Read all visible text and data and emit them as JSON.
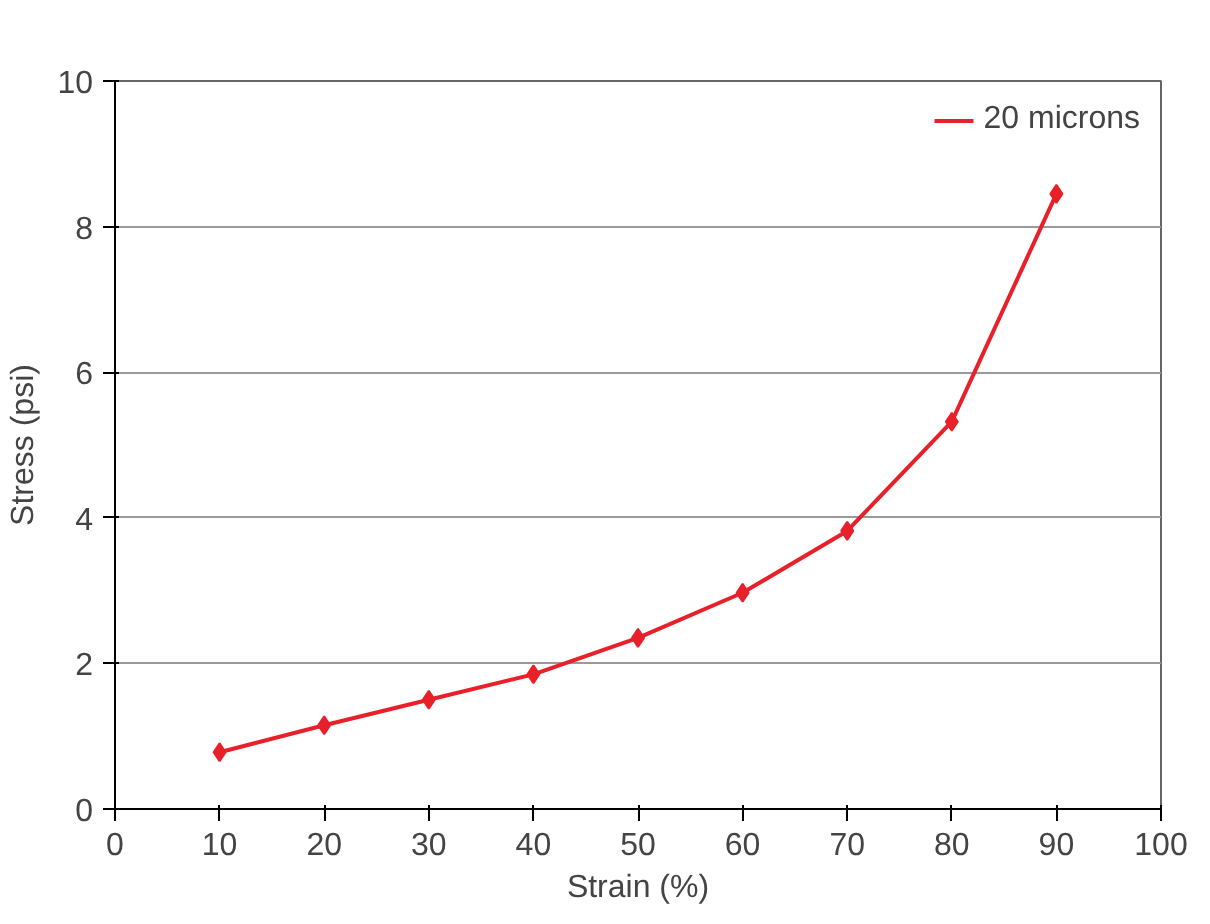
{
  "chart_data": {
    "type": "line",
    "xlabel": "Strain (%)",
    "ylabel": "Stress (psi)",
    "x": [
      10,
      20,
      30,
      40,
      50,
      60,
      70,
      80,
      90
    ],
    "series": [
      {
        "name": "20 microns",
        "color": "#e8202a",
        "values": [
          0.78,
          1.15,
          1.5,
          1.85,
          2.35,
          2.97,
          3.82,
          5.32,
          8.45
        ]
      }
    ],
    "xlim": [
      0,
      100
    ],
    "xticks": [
      0,
      10,
      20,
      30,
      40,
      50,
      60,
      70,
      80,
      90,
      100
    ],
    "ylim": [
      0,
      10
    ],
    "yticks": [
      0,
      2,
      4,
      6,
      8,
      10
    ],
    "grid": "y",
    "legend": "top right",
    "marker": "diamond",
    "line_style": "solid"
  }
}
